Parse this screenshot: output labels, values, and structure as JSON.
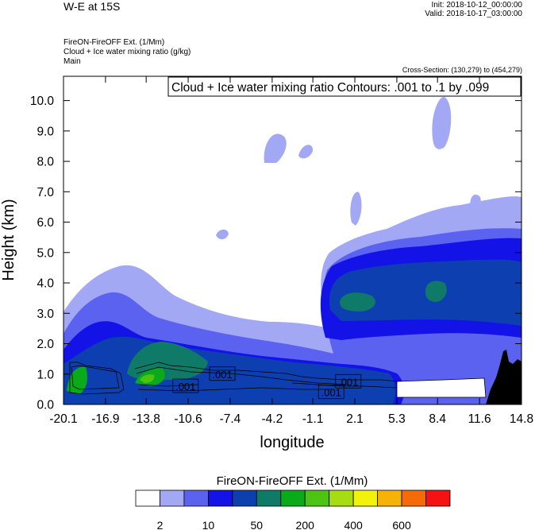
{
  "header": {
    "title": "W-E at 15S",
    "init": "Init: 2018-10-12_00:00:00",
    "valid": "Valid: 2018-10-17_03:00:00",
    "desc_lines": [
      "FireON-FireOFF Ext.   (1/Mm)",
      "Cloud + Ice water mixing ratio   (g/kg)",
      "Main"
    ],
    "cross_section": "Cross-Section: (130,279) to (454,279)",
    "contour_info": "Cloud + Ice water mixing ratio Contours: .001 to .1 by .099"
  },
  "chart_data": {
    "type": "heatmap",
    "title": "W-E at 15S",
    "xlabel": "longitude",
    "ylabel": "Height (km)",
    "xlim": [
      -20.1,
      14.8
    ],
    "ylim": [
      0.0,
      10.8
    ],
    "xticks": [
      "-20.1",
      "-16.9",
      "-13.8",
      "-10.6",
      "-7.4",
      "-4.2",
      "-1.1",
      "2.1",
      "5.3",
      "8.4",
      "11.6",
      "14.8"
    ],
    "yticks": [
      "0.0",
      "1.0",
      "2.0",
      "3.0",
      "4.0",
      "5.0",
      "6.0",
      "7.0",
      "8.0",
      "9.0",
      "10.0"
    ],
    "contour_labels": [
      {
        "text": ".001",
        "x": -8.0,
        "y": 1.0
      },
      {
        "text": ".001",
        "x": -10.8,
        "y": 0.6
      },
      {
        "text": ".001",
        "x": 0.3,
        "y": 0.4
      },
      {
        "text": ".001",
        "x": 1.6,
        "y": 0.75
      }
    ],
    "colorbar": {
      "title": "FireON-FireOFF Ext.  (1/Mm)",
      "colors": [
        "#ffffff",
        "#a3a8f5",
        "#5c62f0",
        "#1313e8",
        "#0d3fb0",
        "#0f7a68",
        "#0aab1a",
        "#4ec412",
        "#a6dc10",
        "#f2f20a",
        "#f7b208",
        "#f76a08",
        "#f51212"
      ],
      "labels": [
        "2",
        "10",
        "50",
        "200",
        "400",
        "600"
      ]
    },
    "terrain_color": "#000000"
  }
}
